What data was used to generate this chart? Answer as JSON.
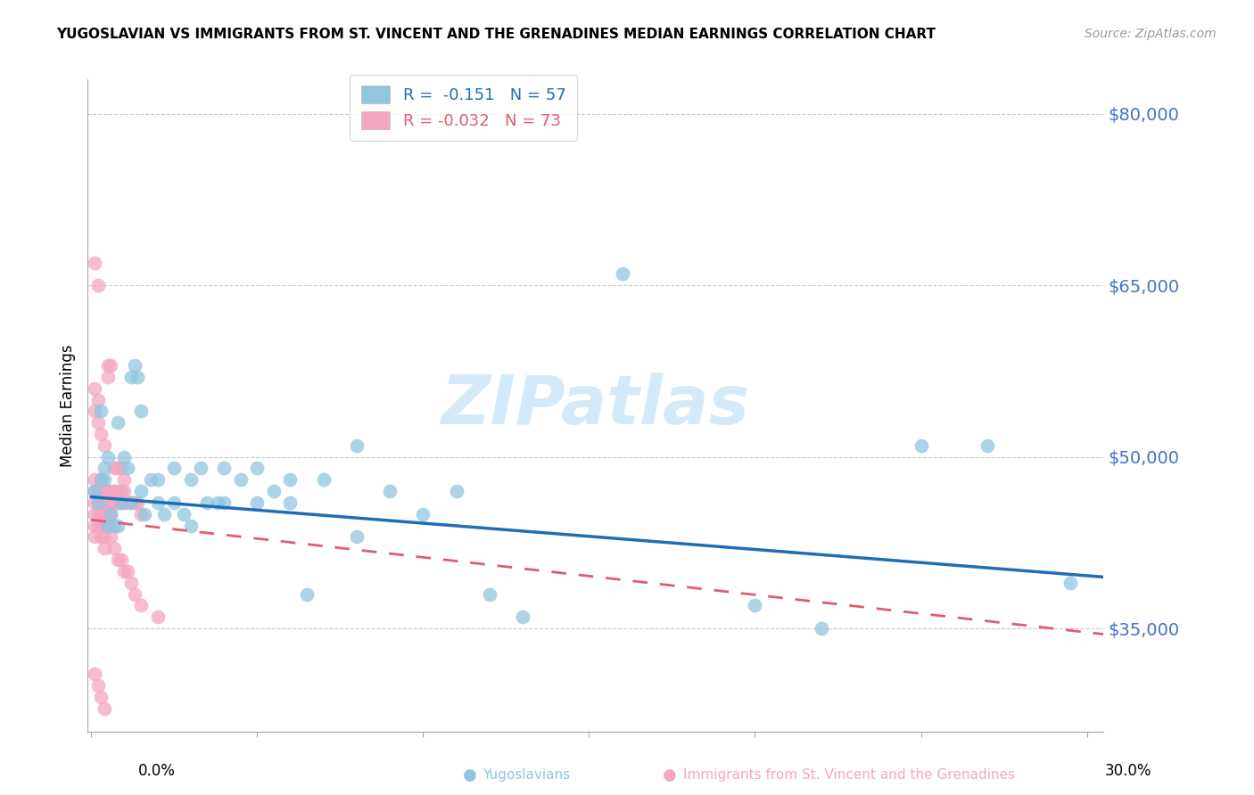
{
  "title": "YUGOSLAVIAN VS IMMIGRANTS FROM ST. VINCENT AND THE GRENADINES MEDIAN EARNINGS CORRELATION CHART",
  "source": "Source: ZipAtlas.com",
  "ylabel": "Median Earnings",
  "yticks": [
    35000,
    50000,
    65000,
    80000
  ],
  "ytick_labels": [
    "$35,000",
    "$50,000",
    "$65,000",
    "$80,000"
  ],
  "ymin": 26000,
  "ymax": 83000,
  "xmin": -0.001,
  "xmax": 0.305,
  "color_blue": "#92c5de",
  "color_pink": "#f4a6c0",
  "color_line_blue": "#1f6eb5",
  "color_line_pink": "#e05c70",
  "watermark_color": "#d0e8f8",
  "legend_label1": "Yugoslavians",
  "legend_label2": "Immigrants from St. Vincent and the Grenadines",
  "blue_line_x0": 0.0,
  "blue_line_x1": 0.305,
  "blue_line_y0": 46500,
  "blue_line_y1": 39500,
  "pink_line_x0": 0.0,
  "pink_line_x1": 0.305,
  "pink_line_y0": 44500,
  "pink_line_y1": 34500,
  "blue_x": [
    0.001,
    0.002,
    0.003,
    0.004,
    0.005,
    0.006,
    0.007,
    0.008,
    0.009,
    0.01,
    0.011,
    0.012,
    0.013,
    0.014,
    0.015,
    0.016,
    0.018,
    0.02,
    0.022,
    0.025,
    0.028,
    0.03,
    0.033,
    0.038,
    0.04,
    0.045,
    0.05,
    0.055,
    0.06,
    0.065,
    0.07,
    0.08,
    0.09,
    0.1,
    0.11,
    0.12,
    0.13,
    0.16,
    0.2,
    0.22,
    0.25,
    0.27,
    0.295,
    0.003,
    0.004,
    0.005,
    0.008,
    0.012,
    0.015,
    0.02,
    0.025,
    0.03,
    0.035,
    0.04,
    0.05,
    0.06,
    0.08
  ],
  "blue_y": [
    47000,
    46000,
    54000,
    48000,
    50000,
    45000,
    44000,
    53000,
    46000,
    50000,
    49000,
    57000,
    58000,
    57000,
    54000,
    45000,
    48000,
    48000,
    45000,
    49000,
    45000,
    48000,
    49000,
    46000,
    49000,
    48000,
    49000,
    47000,
    48000,
    38000,
    48000,
    51000,
    47000,
    45000,
    47000,
    38000,
    36000,
    66000,
    37000,
    35000,
    51000,
    51000,
    39000,
    48000,
    49000,
    44000,
    44000,
    46000,
    47000,
    46000,
    46000,
    44000,
    46000,
    46000,
    46000,
    46000,
    43000
  ],
  "pink_x": [
    0.001,
    0.001,
    0.001,
    0.001,
    0.001,
    0.001,
    0.001,
    0.002,
    0.002,
    0.002,
    0.002,
    0.002,
    0.003,
    0.003,
    0.003,
    0.003,
    0.003,
    0.004,
    0.004,
    0.004,
    0.004,
    0.004,
    0.005,
    0.005,
    0.005,
    0.005,
    0.006,
    0.006,
    0.006,
    0.007,
    0.007,
    0.008,
    0.008,
    0.009,
    0.009,
    0.01,
    0.01,
    0.011,
    0.012,
    0.013,
    0.014,
    0.015,
    0.001,
    0.001,
    0.002,
    0.002,
    0.003,
    0.004,
    0.005,
    0.006,
    0.007,
    0.008,
    0.009,
    0.01,
    0.003,
    0.004,
    0.005,
    0.006,
    0.007,
    0.008,
    0.009,
    0.01,
    0.011,
    0.012,
    0.013,
    0.015,
    0.02,
    0.001,
    0.002,
    0.003,
    0.004
  ],
  "pink_y": [
    47000,
    46000,
    48000,
    45000,
    44000,
    43000,
    67000,
    47000,
    46000,
    45000,
    44000,
    65000,
    47000,
    46000,
    45000,
    44000,
    43000,
    46000,
    45000,
    44000,
    43000,
    42000,
    47000,
    46000,
    45000,
    44000,
    47000,
    46000,
    45000,
    47000,
    46000,
    47000,
    46000,
    47000,
    46000,
    47000,
    46000,
    46000,
    46000,
    46000,
    46000,
    45000,
    56000,
    54000,
    55000,
    53000,
    52000,
    51000,
    58000,
    58000,
    49000,
    49000,
    49000,
    48000,
    48000,
    47000,
    57000,
    43000,
    42000,
    41000,
    41000,
    40000,
    40000,
    39000,
    38000,
    37000,
    36000,
    31000,
    30000,
    29000,
    28000
  ]
}
